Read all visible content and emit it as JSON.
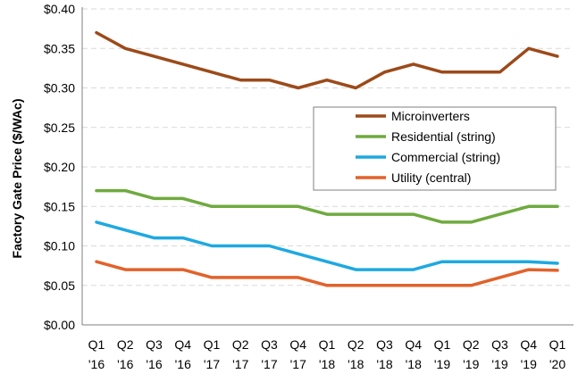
{
  "chart_data": {
    "type": "line",
    "title": "",
    "xlabel": "",
    "ylabel": "Factory Gate Price ($/WAc)",
    "ylim": [
      0,
      0.4
    ],
    "y_ticks": [
      0.0,
      0.05,
      0.1,
      0.15,
      0.2,
      0.25,
      0.3,
      0.35,
      0.4
    ],
    "y_tick_labels": [
      "$0.00",
      "$0.05",
      "$0.10",
      "$0.15",
      "$0.20",
      "$0.25",
      "$0.30",
      "$0.35",
      "$0.40"
    ],
    "categories": [
      {
        "quarter": "Q1",
        "year": "'16"
      },
      {
        "quarter": "Q2",
        "year": "'16"
      },
      {
        "quarter": "Q3",
        "year": "'16"
      },
      {
        "quarter": "Q4",
        "year": "'16"
      },
      {
        "quarter": "Q1",
        "year": "'17"
      },
      {
        "quarter": "Q2",
        "year": "'17"
      },
      {
        "quarter": "Q3",
        "year": "'17"
      },
      {
        "quarter": "Q4",
        "year": "'17"
      },
      {
        "quarter": "Q1",
        "year": "'18"
      },
      {
        "quarter": "Q2",
        "year": "'18"
      },
      {
        "quarter": "Q3",
        "year": "'18"
      },
      {
        "quarter": "Q4",
        "year": "'18"
      },
      {
        "quarter": "Q1",
        "year": "'19"
      },
      {
        "quarter": "Q2",
        "year": "'19"
      },
      {
        "quarter": "Q3",
        "year": "'19"
      },
      {
        "quarter": "Q4",
        "year": "'19"
      },
      {
        "quarter": "Q1",
        "year": "'20"
      }
    ],
    "grid": "horizontal-dashed",
    "legend_position": "right-middle",
    "series": [
      {
        "name": "Microinverters",
        "color": "#9c4a1a",
        "values": [
          0.37,
          0.35,
          0.34,
          0.33,
          0.32,
          0.31,
          0.31,
          0.3,
          0.31,
          0.3,
          0.32,
          0.33,
          0.32,
          0.32,
          0.32,
          0.35,
          0.34
        ]
      },
      {
        "name": "Residential (string)",
        "color": "#6faa3f",
        "values": [
          0.17,
          0.17,
          0.16,
          0.16,
          0.15,
          0.15,
          0.15,
          0.15,
          0.14,
          0.14,
          0.14,
          0.14,
          0.13,
          0.13,
          0.14,
          0.15,
          0.15
        ]
      },
      {
        "name": "Commercial (string)",
        "color": "#1ea9e1",
        "values": [
          0.13,
          0.12,
          0.11,
          0.11,
          0.1,
          0.1,
          0.1,
          0.09,
          0.08,
          0.07,
          0.07,
          0.07,
          0.08,
          0.08,
          0.08,
          0.08,
          0.078
        ]
      },
      {
        "name": "Utility (central)",
        "color": "#e2622a",
        "values": [
          0.08,
          0.07,
          0.07,
          0.07,
          0.06,
          0.06,
          0.06,
          0.06,
          0.05,
          0.05,
          0.05,
          0.05,
          0.05,
          0.05,
          0.06,
          0.07,
          0.069
        ]
      }
    ]
  }
}
